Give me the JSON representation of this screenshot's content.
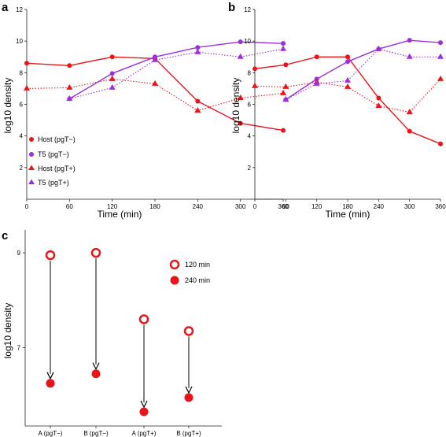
{
  "colors": {
    "host": "#e8141a",
    "t5": "#9b2fe0",
    "axis": "#222222",
    "arrow": "#000000"
  },
  "chart_data": [
    {
      "type": "line",
      "panel_label": "a",
      "xlabel": "Time (min)",
      "ylabel": "log10 density",
      "x": [
        0,
        60,
        120,
        180,
        240,
        300,
        360
      ],
      "xlim": [
        0,
        360
      ],
      "ylim": [
        0,
        12
      ],
      "yticks": [
        2,
        4,
        6,
        8,
        10,
        12
      ],
      "xticks": [
        0,
        60,
        120,
        180,
        240,
        300,
        360
      ],
      "series": [
        {
          "name": "Host (pgT−)",
          "marker": "circle",
          "line": "solid",
          "color": "host",
          "x": [
            0,
            60,
            120,
            180,
            240,
            300,
            360
          ],
          "y": [
            8.6,
            8.45,
            9.0,
            8.9,
            6.2,
            4.8,
            4.35
          ]
        },
        {
          "name": "T5 (pgT−)",
          "marker": "circle",
          "line": "solid",
          "color": "t5",
          "x": [
            60,
            120,
            180,
            240,
            300,
            360
          ],
          "y": [
            6.35,
            7.95,
            9.0,
            9.6,
            9.95,
            9.85
          ]
        },
        {
          "name": "Host (pgT+)",
          "marker": "triangle",
          "line": "dotted",
          "color": "host",
          "x": [
            0,
            60,
            120,
            180,
            240,
            300,
            360
          ],
          "y": [
            7.0,
            7.05,
            7.6,
            7.3,
            5.6,
            6.4,
            6.7
          ]
        },
        {
          "name": "T5 (pgT+)",
          "marker": "triangle",
          "line": "dotted",
          "color": "t5",
          "x": [
            60,
            120,
            180,
            240,
            300,
            360
          ],
          "y": [
            6.35,
            7.05,
            8.8,
            9.3,
            9.0,
            9.5
          ]
        }
      ],
      "legend": {
        "placement": "lower-left"
      }
    },
    {
      "type": "line",
      "panel_label": "b",
      "xlabel": "Time (min)",
      "ylabel": "log10 density",
      "x": [
        0,
        60,
        120,
        180,
        240,
        300,
        360
      ],
      "xlim": [
        0,
        360
      ],
      "ylim": [
        0,
        12
      ],
      "yticks": [
        2,
        4,
        6,
        8,
        10,
        12
      ],
      "xticks": [
        0,
        60,
        120,
        180,
        240,
        300,
        360
      ],
      "series": [
        {
          "name": "Host (pgT−)",
          "marker": "circle",
          "line": "solid",
          "color": "host",
          "x": [
            0,
            60,
            120,
            180,
            240,
            300,
            360
          ],
          "y": [
            8.25,
            8.5,
            9.0,
            9.0,
            6.4,
            4.3,
            3.5
          ]
        },
        {
          "name": "T5 (pgT−)",
          "marker": "circle",
          "line": "solid",
          "color": "t5",
          "x": [
            60,
            120,
            180,
            240,
            300,
            360
          ],
          "y": [
            6.3,
            7.6,
            8.7,
            9.5,
            10.05,
            9.9
          ]
        },
        {
          "name": "Host (pgT+)",
          "marker": "triangle",
          "line": "dotted",
          "color": "host",
          "x": [
            0,
            60,
            120,
            180,
            240,
            300,
            360
          ],
          "y": [
            7.15,
            7.1,
            7.4,
            7.1,
            5.9,
            5.5,
            7.6
          ]
        },
        {
          "name": "T5 (pgT+)",
          "marker": "triangle",
          "line": "dotted",
          "color": "t5",
          "x": [
            60,
            120,
            180,
            240,
            300,
            360
          ],
          "y": [
            6.3,
            7.3,
            7.5,
            9.5,
            9.0,
            9.0
          ]
        }
      ]
    },
    {
      "type": "scatter",
      "panel_label": "c",
      "ylabel": "log10 density",
      "categories": [
        "A (pgT−)",
        "B (pgT−)",
        "A (pgT+)",
        "B (pgT+)"
      ],
      "ylim": [
        5.55,
        9.25
      ],
      "yticks": [
        7,
        9
      ],
      "series": [
        {
          "name": "120 min",
          "marker": "open-circle",
          "color": "host",
          "values": [
            8.95,
            9.0,
            7.6,
            7.35
          ]
        },
        {
          "name": "240 min",
          "marker": "filled-circle",
          "color": "host",
          "values": [
            6.25,
            6.45,
            5.65,
            5.95
          ]
        }
      ],
      "arrows": "from 120 min value down to 240 min value",
      "legend": {
        "placement": "top-right"
      }
    }
  ]
}
